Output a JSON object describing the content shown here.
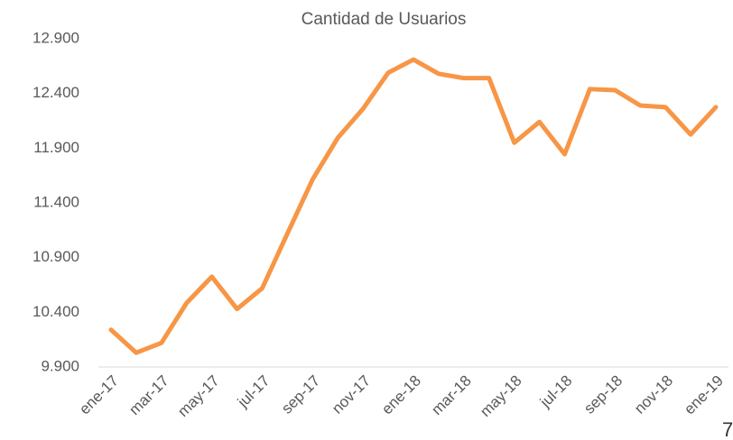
{
  "chart_data": {
    "type": "line",
    "title": "Cantidad de Usuarios",
    "categories": [
      "ene-17",
      null,
      "mar-17",
      null,
      "may-17",
      null,
      "jul-17",
      null,
      "sep-17",
      null,
      "nov-17",
      null,
      "ene-18",
      null,
      "mar-18",
      null,
      "may-18",
      null,
      "jul-18",
      null,
      "sep-18",
      null,
      "nov-18",
      null,
      "ene-19"
    ],
    "series": [
      {
        "name": "Cantidad de Usuarios",
        "color": "#f79646",
        "values": [
          10240,
          10030,
          10120,
          10485,
          10725,
          10430,
          10620,
          11120,
          11615,
          11995,
          12260,
          12590,
          12710,
          12580,
          12540,
          12540,
          11950,
          12140,
          11845,
          12440,
          12430,
          12290,
          12275,
          12025,
          12275
        ]
      }
    ],
    "ylim": [
      9900,
      12900
    ],
    "yticks": [
      {
        "value": 9900,
        "label": "9.900"
      },
      {
        "value": 10400,
        "label": "10.400"
      },
      {
        "value": 10900,
        "label": "10.900"
      },
      {
        "value": 11400,
        "label": "11.400"
      },
      {
        "value": 11900,
        "label": "11.900"
      },
      {
        "value": 12400,
        "label": "12.400"
      },
      {
        "value": 12900,
        "label": "12.900"
      }
    ],
    "grid": false
  },
  "page_number": "7"
}
